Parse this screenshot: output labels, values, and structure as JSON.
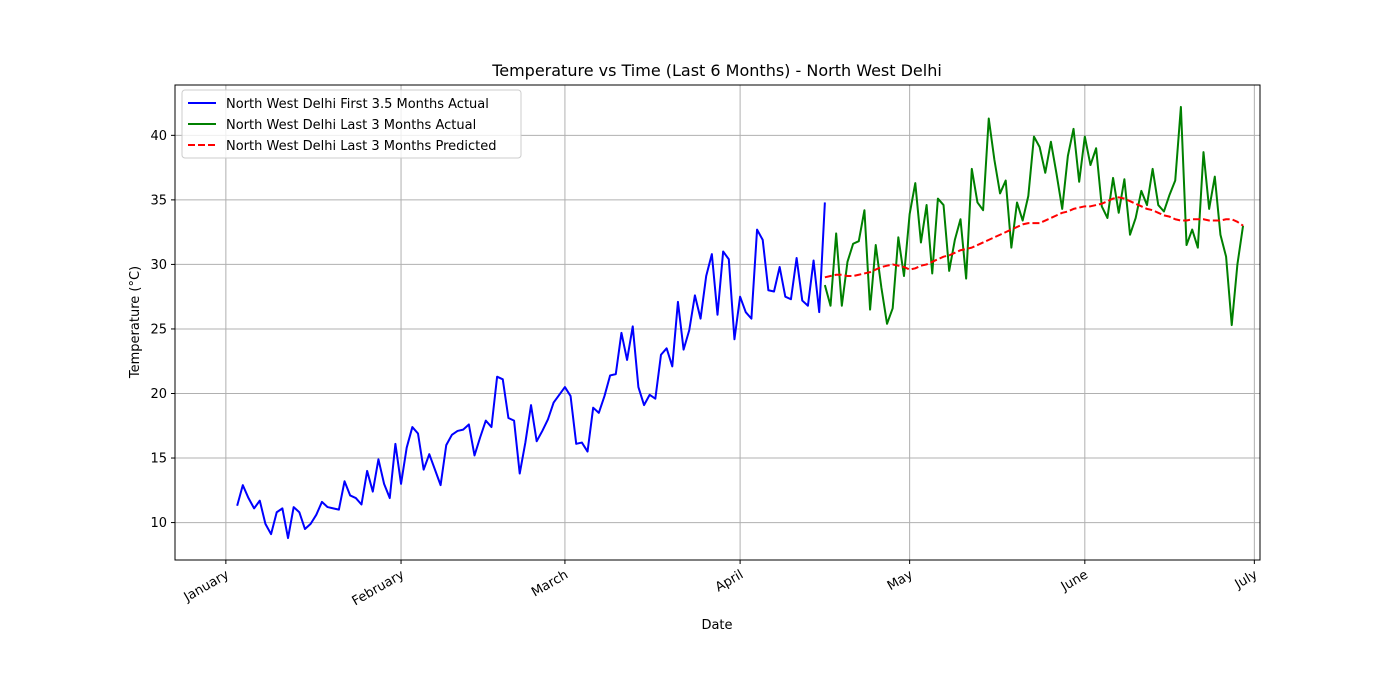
{
  "chart_data": {
    "type": "line",
    "title": "Temperature vs Time (Last 6 Months) - North West Delhi",
    "xlabel": "Date",
    "ylabel": "Temperature (°C)",
    "xlim": [
      "2024-12-23",
      "2024-07-02"
    ],
    "ylim": [
      7.1,
      43.9
    ],
    "grid": true,
    "legend_position": "top-left",
    "x_ticks": [
      {
        "date": "2024-01-01",
        "label": "January"
      },
      {
        "date": "2024-02-01",
        "label": "February"
      },
      {
        "date": "2024-03-01",
        "label": "March"
      },
      {
        "date": "2024-04-01",
        "label": "April"
      },
      {
        "date": "2024-05-01",
        "label": "May"
      },
      {
        "date": "2024-06-01",
        "label": "June"
      },
      {
        "date": "2024-07-01",
        "label": "July"
      }
    ],
    "y_ticks": [
      10,
      15,
      20,
      25,
      30,
      35,
      40
    ],
    "series": [
      {
        "name": "North West Delhi First 3.5 Months Actual",
        "color": "#0000ff",
        "dash": "solid",
        "start_date": "2024-01-03",
        "values": [
          11.3,
          12.9,
          11.9,
          11.1,
          11.7,
          9.9,
          9.1,
          10.8,
          11.1,
          8.8,
          11.2,
          10.8,
          9.5,
          9.9,
          10.6,
          11.6,
          11.2,
          11.1,
          11.0,
          13.2,
          12.1,
          11.9,
          11.4,
          14.0,
          12.4,
          14.9,
          13.0,
          11.9,
          16.1,
          13.0,
          15.8,
          17.4,
          16.9,
          14.1,
          15.3,
          14.1,
          12.9,
          16.0,
          16.8,
          17.1,
          17.2,
          17.6,
          15.2,
          16.6,
          17.9,
          17.4,
          21.3,
          21.1,
          18.1,
          17.9,
          13.8,
          16.2,
          19.1,
          16.3,
          17.1,
          18.0,
          19.3,
          19.9,
          20.5,
          19.8,
          16.1,
          16.2,
          15.5,
          18.9,
          18.5,
          19.8,
          21.4,
          21.5,
          24.7,
          22.6,
          25.2,
          20.5,
          19.1,
          19.9,
          19.6,
          23.0,
          23.5,
          22.1,
          27.1,
          23.4,
          24.9,
          27.6,
          25.8,
          29.1,
          30.8,
          26.1,
          31.0,
          30.4,
          24.2,
          27.5,
          26.3,
          25.8,
          32.7,
          31.9,
          28.0,
          27.9,
          29.8,
          27.5,
          27.3,
          30.5,
          27.2,
          26.8,
          30.3,
          26.3,
          34.8
        ]
      },
      {
        "name": "North West Delhi Last 3 Months Actual",
        "color": "#008000",
        "dash": "solid",
        "start_date": "2024-04-16",
        "values": [
          28.4,
          26.8,
          32.4,
          26.8,
          30.2,
          31.6,
          31.8,
          34.2,
          26.5,
          31.5,
          28.2,
          25.4,
          26.6,
          32.1,
          29.1,
          33.9,
          36.3,
          31.7,
          34.6,
          29.3,
          35.1,
          34.6,
          29.5,
          31.9,
          33.5,
          28.9,
          37.4,
          34.8,
          34.2,
          41.3,
          38.1,
          35.5,
          36.5,
          31.3,
          34.8,
          33.4,
          35.3,
          39.9,
          39.1,
          37.1,
          39.5,
          37.0,
          34.3,
          38.4,
          40.5,
          36.4,
          39.9,
          37.7,
          39.0,
          34.5,
          33.6,
          36.7,
          34.0,
          36.6,
          32.3,
          33.6,
          35.7,
          34.6,
          37.4,
          34.6,
          34.1,
          35.4,
          36.5,
          42.2,
          31.5,
          32.7,
          31.3,
          38.7,
          34.3,
          36.8,
          32.3,
          30.6,
          25.3,
          30.0,
          33.0
        ]
      },
      {
        "name": "North West Delhi Last 3 Months Predicted",
        "color": "#ff0000",
        "dash": "dashed",
        "start_date": "2024-04-16",
        "values": [
          29.0,
          29.1,
          29.2,
          29.2,
          29.1,
          29.1,
          29.2,
          29.3,
          29.4,
          29.6,
          29.8,
          29.9,
          30.0,
          29.9,
          29.8,
          29.6,
          29.7,
          29.9,
          30.0,
          30.2,
          30.4,
          30.6,
          30.7,
          30.9,
          31.1,
          31.2,
          31.3,
          31.5,
          31.7,
          31.9,
          32.1,
          32.3,
          32.5,
          32.7,
          32.9,
          33.1,
          33.2,
          33.2,
          33.2,
          33.4,
          33.6,
          33.8,
          34.0,
          34.1,
          34.3,
          34.4,
          34.5,
          34.5,
          34.6,
          34.7,
          34.9,
          35.1,
          35.2,
          35.1,
          34.9,
          34.7,
          34.5,
          34.3,
          34.2,
          34.0,
          33.8,
          33.7,
          33.5,
          33.4,
          33.4,
          33.5,
          33.5,
          33.5,
          33.4,
          33.4,
          33.4,
          33.5,
          33.5,
          33.3,
          33.0
        ]
      }
    ]
  }
}
